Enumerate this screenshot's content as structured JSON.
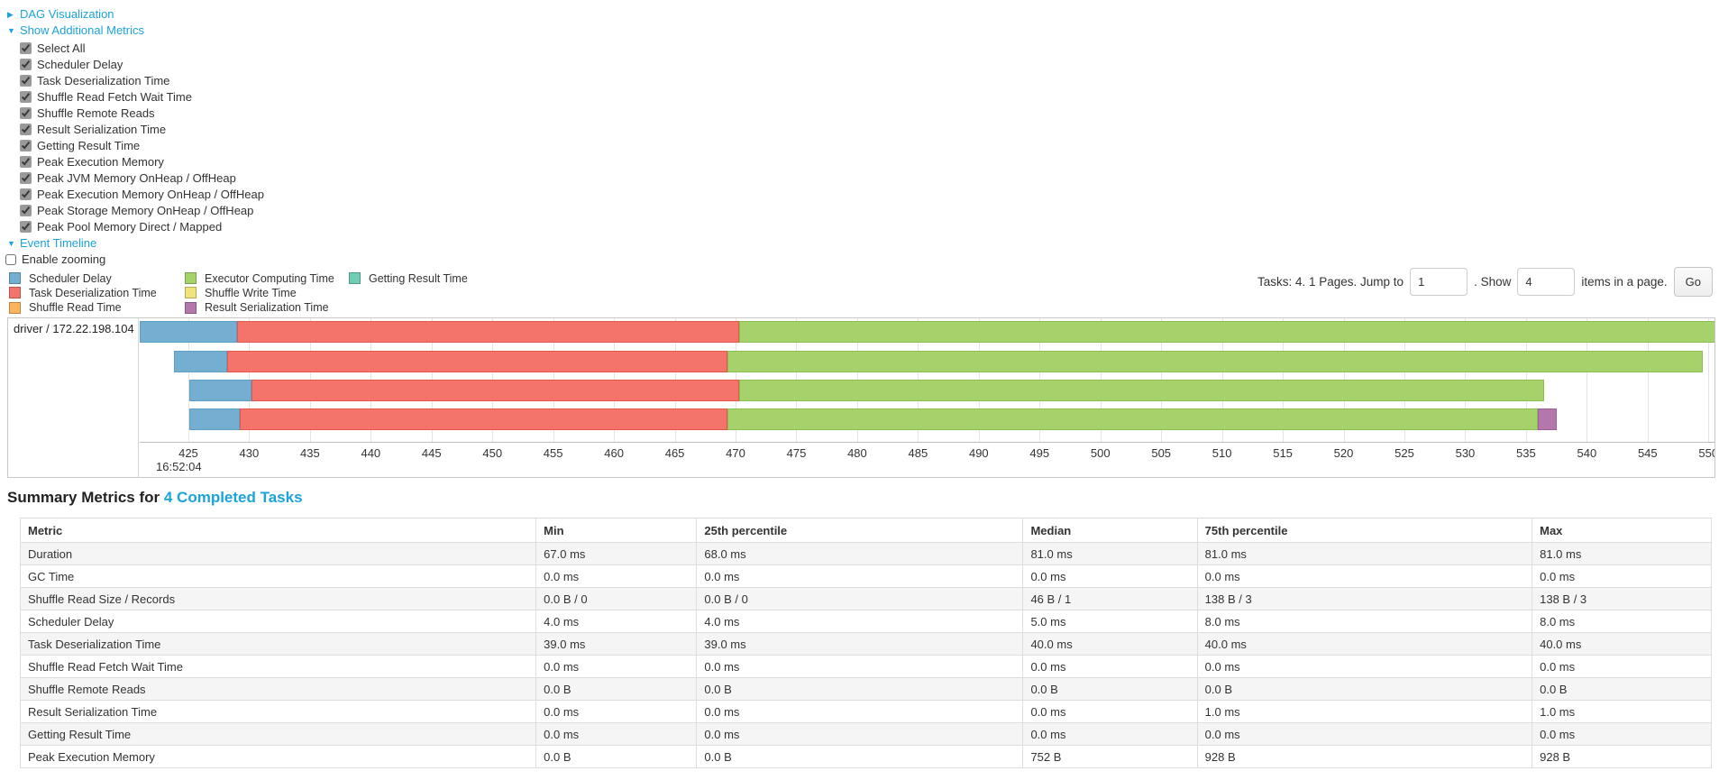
{
  "controls": {
    "dag_label": "DAG Visualization",
    "metrics_toggle_label": "Show Additional Metrics",
    "metric_checkboxes": [
      "Select All",
      "Scheduler Delay",
      "Task Deserialization Time",
      "Shuffle Read Fetch Wait Time",
      "Shuffle Remote Reads",
      "Result Serialization Time",
      "Getting Result Time",
      "Peak Execution Memory",
      "Peak JVM Memory OnHeap / OffHeap",
      "Peak Execution Memory OnHeap / OffHeap",
      "Peak Storage Memory OnHeap / OffHeap",
      "Peak Pool Memory Direct / Mapped"
    ],
    "event_timeline_label": "Event Timeline",
    "enable_zooming_label": "Enable zooming"
  },
  "pagination": {
    "summary_text": "Tasks: 4. 1 Pages. Jump to",
    "jump_value": "1",
    "mid_text": ". Show",
    "show_value": "4",
    "suffix_text": "items in a page.",
    "go_label": "Go"
  },
  "chart_data": {
    "type": "bar",
    "subtype": "horizontal-task-timeline",
    "title": "Event Timeline",
    "row_label": "driver / 172.22.198.104",
    "time_of_first_tick": "16:52:04",
    "xlim": [
      421.0,
      550.5
    ],
    "xticks": [
      425,
      430,
      435,
      440,
      445,
      450,
      455,
      460,
      465,
      470,
      475,
      480,
      485,
      490,
      495,
      500,
      505,
      510,
      515,
      520,
      525,
      530,
      535,
      540,
      545,
      550
    ],
    "grid": true,
    "legend_position": "top-left",
    "legend": [
      {
        "label": "Scheduler Delay",
        "color": "#74AFD1",
        "column": 0
      },
      {
        "label": "Task Deserialization Time",
        "color": "#F4736A",
        "column": 0
      },
      {
        "label": "Shuffle Read Time",
        "color": "#FBB45C",
        "column": 0
      },
      {
        "label": "Executor Computing Time",
        "color": "#A5D26A",
        "column": 1
      },
      {
        "label": "Shuffle Write Time",
        "color": "#F0E37E",
        "column": 1
      },
      {
        "label": "Result Serialization Time",
        "color": "#B576AE",
        "column": 1
      },
      {
        "label": "Getting Result Time",
        "color": "#6FCDB4",
        "column": 2
      }
    ],
    "colors": {
      "scheduler-delay": "#74AFD1",
      "task-deserialization": "#F4736A",
      "executor-computing": "#A5D26A",
      "result-serialization": "#B576AE"
    },
    "border_colors": {
      "scheduler-delay": "#5E9DC4",
      "task-deserialization": "#E0584E",
      "executor-computing": "#8CBE4F",
      "result-serialization": "#9C5E96"
    },
    "tasks": [
      {
        "segments": [
          {
            "type": "scheduler-delay",
            "start": 421.0,
            "end": 429.0
          },
          {
            "type": "task-deserialization",
            "start": 429.0,
            "end": 470.3
          },
          {
            "type": "executor-computing",
            "start": 470.3,
            "end": 550.6
          }
        ]
      },
      {
        "segments": [
          {
            "type": "scheduler-delay",
            "start": 423.8,
            "end": 428.2
          },
          {
            "type": "task-deserialization",
            "start": 428.2,
            "end": 469.3
          },
          {
            "type": "executor-computing",
            "start": 469.3,
            "end": 549.5
          }
        ]
      },
      {
        "segments": [
          {
            "type": "scheduler-delay",
            "start": 425.1,
            "end": 430.2
          },
          {
            "type": "task-deserialization",
            "start": 430.2,
            "end": 470.3
          },
          {
            "type": "executor-computing",
            "start": 470.3,
            "end": 536.5
          }
        ]
      },
      {
        "segments": [
          {
            "type": "scheduler-delay",
            "start": 425.1,
            "end": 429.2
          },
          {
            "type": "task-deserialization",
            "start": 429.2,
            "end": 469.3
          },
          {
            "type": "executor-computing",
            "start": 469.3,
            "end": 536.0
          },
          {
            "type": "result-serialization",
            "start": 536.0,
            "end": 537.5
          }
        ]
      }
    ]
  },
  "summary": {
    "title_text": "Summary Metrics for",
    "title_link": "4 Completed Tasks",
    "table": {
      "headers": [
        "Metric",
        "Min",
        "25th percentile",
        "Median",
        "75th percentile",
        "Max"
      ],
      "col_widths_pct": [
        30.5,
        9.5,
        19.3,
        10.3,
        19.8,
        10.6
      ],
      "rows": [
        {
          "metric": "Duration",
          "values": [
            "67.0 ms",
            "68.0 ms",
            "81.0 ms",
            "81.0 ms",
            "81.0 ms"
          ]
        },
        {
          "metric": "GC Time",
          "values": [
            "0.0 ms",
            "0.0 ms",
            "0.0 ms",
            "0.0 ms",
            "0.0 ms"
          ]
        },
        {
          "metric": "Shuffle Read Size / Records",
          "values": [
            "0.0 B / 0",
            "0.0 B / 0",
            "46 B / 1",
            "138 B / 3",
            "138 B / 3"
          ]
        },
        {
          "metric": "Scheduler Delay",
          "values": [
            "4.0 ms",
            "4.0 ms",
            "5.0 ms",
            "8.0 ms",
            "8.0 ms"
          ]
        },
        {
          "metric": "Task Deserialization Time",
          "values": [
            "39.0 ms",
            "39.0 ms",
            "40.0 ms",
            "40.0 ms",
            "40.0 ms"
          ]
        },
        {
          "metric": "Shuffle Read Fetch Wait Time",
          "values": [
            "0.0 ms",
            "0.0 ms",
            "0.0 ms",
            "0.0 ms",
            "0.0 ms"
          ]
        },
        {
          "metric": "Shuffle Remote Reads",
          "values": [
            "0.0 B",
            "0.0 B",
            "0.0 B",
            "0.0 B",
            "0.0 B"
          ]
        },
        {
          "metric": "Result Serialization Time",
          "values": [
            "0.0 ms",
            "0.0 ms",
            "0.0 ms",
            "1.0 ms",
            "1.0 ms"
          ]
        },
        {
          "metric": "Getting Result Time",
          "values": [
            "0.0 ms",
            "0.0 ms",
            "0.0 ms",
            "0.0 ms",
            "0.0 ms"
          ]
        },
        {
          "metric": "Peak Execution Memory",
          "values": [
            "0.0 B",
            "0.0 B",
            "752 B",
            "928 B",
            "928 B"
          ]
        }
      ]
    }
  }
}
